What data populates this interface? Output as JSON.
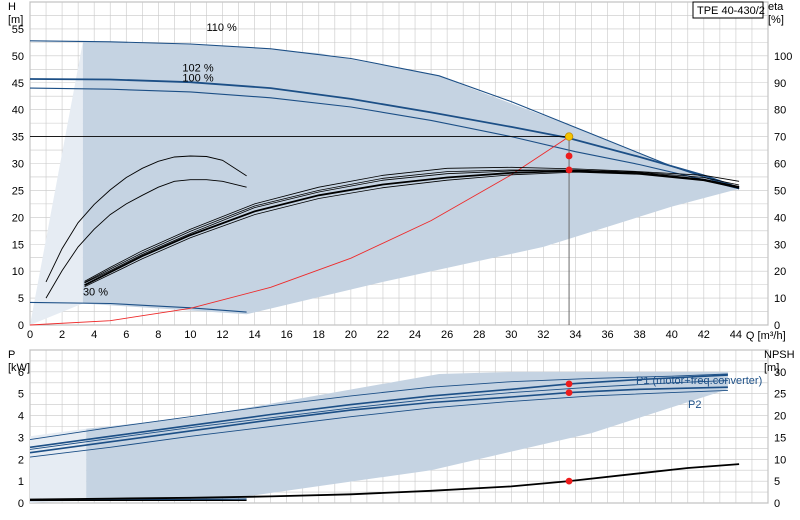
{
  "model": "TPE 40-430/2",
  "colors": {
    "envelope": "#c5d3e2",
    "envelope_light": "#e6ecf3",
    "speed_curve": "#1c4f86",
    "efficiency": "#000000",
    "system_curve": "#ee2a2a",
    "duty_point": "#f5c400",
    "marker": "#ee1c1c",
    "grid": "#c8c8c8"
  },
  "chart_data": [
    {
      "type": "line",
      "id": "qh",
      "xlabel": "Q [m³/h]",
      "ylabel": "H\n[m]",
      "y2label": "eta\n[%]",
      "xlim": [
        0,
        46
      ],
      "ylim": [
        0,
        60
      ],
      "y2lim": [
        0,
        120
      ],
      "xticks": [
        0,
        2,
        4,
        6,
        8,
        10,
        12,
        14,
        16,
        18,
        20,
        22,
        24,
        26,
        28,
        30,
        32,
        34,
        36,
        38,
        40,
        42,
        44
      ],
      "yticks": [
        0,
        5,
        10,
        15,
        20,
        25,
        30,
        35,
        40,
        45,
        50,
        55
      ],
      "y2ticks": [
        0,
        10,
        20,
        30,
        40,
        50,
        60,
        70,
        80,
        90,
        100
      ],
      "grid": true,
      "envelope": {
        "outer": [
          [
            0,
            52.8
          ],
          [
            3.3,
            52.6
          ],
          [
            10,
            52.2
          ],
          [
            18,
            50.5
          ],
          [
            25.5,
            46.2
          ],
          [
            33,
            37.8
          ],
          [
            40,
            29.5
          ],
          [
            44.2,
            25.3
          ]
        ],
        "lower": [
          [
            44.2,
            25.3
          ],
          [
            40,
            22.0
          ],
          [
            32,
            14.5
          ],
          [
            22,
            8.0
          ],
          [
            13.5,
            2.0
          ]
        ],
        "minimum": [
          [
            0,
            4.2
          ],
          [
            5,
            4.0
          ],
          [
            10,
            3.2
          ],
          [
            13.5,
            2.4
          ]
        ]
      },
      "series": [
        {
          "name": "110 %",
          "role": "speed",
          "points": [
            [
              0,
              52.8
            ],
            [
              5,
              52.6
            ],
            [
              10,
              52.2
            ],
            [
              15,
              51.3
            ],
            [
              20,
              49.5
            ],
            [
              25.5,
              46.3
            ],
            [
              30,
              41.5
            ],
            [
              35,
              35.5
            ],
            [
              40,
              29.5
            ],
            [
              44.2,
              25.3
            ]
          ]
        },
        {
          "name": "102 %",
          "role": "speed",
          "points": [
            [
              0,
              45.7
            ],
            [
              5,
              45.6
            ],
            [
              10,
              45.1
            ],
            [
              15,
              44.0
            ],
            [
              20,
              42.0
            ],
            [
              25,
              39.5
            ],
            [
              30,
              36.8
            ],
            [
              33.5,
              34.8
            ],
            [
              38,
              31.2
            ],
            [
              42,
              27.8
            ],
            [
              44.2,
              25.5
            ]
          ]
        },
        {
          "name": "100 %",
          "role": "speed",
          "points": [
            [
              0,
              44.0
            ],
            [
              5,
              43.8
            ],
            [
              10,
              43.3
            ],
            [
              15,
              42.2
            ],
            [
              20,
              40.5
            ],
            [
              25,
              38.0
            ],
            [
              30,
              35.0
            ],
            [
              34,
              32.2
            ],
            [
              38,
              29.8
            ],
            [
              42,
              27.0
            ],
            [
              44.2,
              25.3
            ]
          ]
        },
        {
          "name": "30 %",
          "role": "speed",
          "points": [
            [
              0,
              4.2
            ],
            [
              5,
              4.0
            ],
            [
              10,
              3.2
            ],
            [
              13.5,
              2.4
            ]
          ]
        },
        {
          "name": "",
          "role": "system",
          "points": [
            [
              0,
              0
            ],
            [
              5,
              0.8
            ],
            [
              10,
              3.1
            ],
            [
              15,
              7.0
            ],
            [
              20,
              12.4
            ],
            [
              25,
              19.4
            ],
            [
              30,
              27.9
            ],
            [
              33.6,
              35.0
            ]
          ]
        },
        {
          "name": "",
          "role": "efficiency",
          "points": [
            [
              3.4,
              15.8
            ],
            [
              5,
              20.8
            ],
            [
              7,
              26.8
            ],
            [
              10,
              34.8
            ],
            [
              14,
              44.2
            ],
            [
              18,
              50.0
            ],
            [
              22,
              54.5
            ],
            [
              26,
              57.0
            ],
            [
              30,
              57.6
            ],
            [
              34,
              57.5
            ],
            [
              38,
              56.4
            ],
            [
              42,
              54.1
            ],
            [
              44.2,
              51.5
            ]
          ]
        },
        {
          "name": "",
          "role": "efficiency",
          "points": [
            [
              3.4,
              14.8
            ],
            [
              5,
              19.6
            ],
            [
              7,
              25.6
            ],
            [
              10,
              33.4
            ],
            [
              14,
              42.2
            ],
            [
              18,
              48.2
            ],
            [
              22,
              52.2
            ],
            [
              26,
              54.8
            ],
            [
              30,
              56.5
            ],
            [
              33.6,
              57.2
            ],
            [
              38,
              56.4
            ],
            [
              42,
              54.0
            ],
            [
              44.2,
              51.2
            ]
          ]
        },
        {
          "name": "",
          "role": "efficiency",
          "points": [
            [
              3.4,
              15.6
            ],
            [
              5,
              20.2
            ],
            [
              7,
              26.2
            ],
            [
              10,
              34.0
            ],
            [
              14,
              43.6
            ],
            [
              18,
              49.4
            ],
            [
              22,
              53.8
            ],
            [
              26,
              56.2
            ],
            [
              30,
              57.2
            ],
            [
              34,
              57.6
            ],
            [
              38,
              56.8
            ],
            [
              42,
              54.8
            ],
            [
              44.2,
              52.0
            ]
          ]
        },
        {
          "name": "",
          "role": "efficiency",
          "points": [
            [
              3.4,
              14.2
            ],
            [
              5,
              18.8
            ],
            [
              7,
              24.6
            ],
            [
              10,
              32.4
            ],
            [
              14,
              41.0
            ],
            [
              18,
              47.0
            ],
            [
              22,
              51.0
            ],
            [
              26,
              53.8
            ],
            [
              30,
              55.8
            ],
            [
              34,
              56.8
            ],
            [
              38,
              56.0
            ],
            [
              42,
              53.6
            ],
            [
              44.2,
              50.8
            ]
          ]
        },
        {
          "name": "",
          "role": "efficiency",
          "points": [
            [
              3.4,
              16.2
            ],
            [
              5,
              21.4
            ],
            [
              7,
              27.6
            ],
            [
              10,
              35.6
            ],
            [
              14,
              45.0
            ],
            [
              18,
              51.2
            ],
            [
              22,
              55.6
            ],
            [
              26,
              58.2
            ],
            [
              30,
              58.6
            ],
            [
              34,
              58.0
            ],
            [
              38,
              57.0
            ],
            [
              42,
              55.6
            ],
            [
              44.2,
              53.4
            ]
          ]
        },
        {
          "name": "",
          "role": "efficiency_low",
          "points": [
            [
              1,
              10.0
            ],
            [
              2,
              20.2
            ],
            [
              3,
              29.0
            ],
            [
              4,
              35.6
            ],
            [
              5,
              41.0
            ],
            [
              6,
              45.0
            ],
            [
              7,
              48.2
            ],
            [
              8,
              51.2
            ],
            [
              9,
              53.4
            ],
            [
              10,
              54.0
            ],
            [
              11,
              54.0
            ],
            [
              12,
              53.4
            ],
            [
              13.5,
              51.2
            ]
          ]
        },
        {
          "name": "",
          "role": "efficiency_low",
          "points": [
            [
              1,
              16.0
            ],
            [
              2,
              28.4
            ],
            [
              3,
              38.0
            ],
            [
              4,
              44.8
            ],
            [
              5,
              50.2
            ],
            [
              6,
              54.8
            ],
            [
              7,
              58.2
            ],
            [
              8,
              60.8
            ],
            [
              9,
              62.4
            ],
            [
              10,
              62.8
            ],
            [
              11,
              62.6
            ],
            [
              12,
              61.2
            ],
            [
              13.5,
              55.4
            ]
          ]
        }
      ],
      "duty_point": [
        33.6,
        35.0
      ],
      "markers": [
        [
          33.6,
          31.4
        ],
        [
          33.6,
          28.8
        ]
      ],
      "annotations": [
        {
          "text": "110 %",
          "at": [
            11,
            54.6
          ]
        },
        {
          "text": "102 %",
          "at": [
            9.5,
            47.1
          ]
        },
        {
          "text": "100 %",
          "at": [
            9.5,
            45.2
          ]
        },
        {
          "text": "30 %",
          "at": [
            3.3,
            5.5
          ]
        }
      ]
    },
    {
      "type": "line",
      "id": "power",
      "xlabel": "",
      "ylabel": "P\n[kW]",
      "y2label": "NPSH\n[m]",
      "xlim": [
        0,
        46
      ],
      "ylim": [
        0,
        7
      ],
      "y2lim": [
        0,
        35
      ],
      "yticks": [
        0,
        1,
        2,
        3,
        4,
        5,
        6
      ],
      "y2ticks": [
        0,
        5,
        10,
        15,
        20,
        25,
        30
      ],
      "grid": true,
      "envelope": {
        "outer": [
          [
            0,
            3.05
          ],
          [
            10,
            3.9
          ],
          [
            25.5,
            5.9
          ],
          [
            30,
            6.0
          ],
          [
            40,
            6.0
          ],
          [
            43.5,
            6.0
          ]
        ],
        "lower": [
          [
            43.5,
            5.2
          ],
          [
            35,
            3.2
          ],
          [
            25,
            1.5
          ],
          [
            13.5,
            0.3
          ],
          [
            3.5,
            0.1
          ]
        ]
      },
      "series": [
        {
          "name": "P1 (motor+freq.converter)",
          "role": "p1",
          "points": [
            [
              0,
              2.55
            ],
            [
              5,
              3.05
            ],
            [
              10,
              3.55
            ],
            [
              15,
              4.05
            ],
            [
              20,
              4.5
            ],
            [
              25,
              4.9
            ],
            [
              30,
              5.2
            ],
            [
              33.6,
              5.45
            ],
            [
              38,
              5.65
            ],
            [
              43.5,
              5.85
            ]
          ]
        },
        {
          "name": "P2",
          "role": "p2",
          "points": [
            [
              0,
              2.3
            ],
            [
              5,
              2.8
            ],
            [
              10,
              3.3
            ],
            [
              15,
              3.8
            ],
            [
              20,
              4.25
            ],
            [
              25,
              4.6
            ],
            [
              30,
              4.85
            ],
            [
              33.6,
              5.05
            ],
            [
              38,
              5.2
            ],
            [
              43.5,
              5.3
            ]
          ]
        },
        {
          "name": "",
          "role": "p_thin",
          "points": [
            [
              0,
              2.9
            ],
            [
              5,
              3.45
            ],
            [
              10,
              3.95
            ],
            [
              15,
              4.45
            ],
            [
              20,
              4.9
            ],
            [
              25,
              5.3
            ],
            [
              30,
              5.55
            ],
            [
              35,
              5.7
            ],
            [
              40,
              5.8
            ],
            [
              43.5,
              5.9
            ]
          ]
        },
        {
          "name": "",
          "role": "p_thin",
          "points": [
            [
              0,
              2.1
            ],
            [
              5,
              2.55
            ],
            [
              10,
              3.05
            ],
            [
              15,
              3.5
            ],
            [
              20,
              3.95
            ],
            [
              25,
              4.35
            ],
            [
              30,
              4.65
            ],
            [
              35,
              4.9
            ],
            [
              40,
              5.05
            ],
            [
              43.5,
              5.15
            ]
          ]
        },
        {
          "name": "",
          "role": "p_thin",
          "points": [
            [
              0,
              2.45
            ],
            [
              5,
              2.95
            ],
            [
              10,
              3.45
            ],
            [
              15,
              3.9
            ],
            [
              20,
              4.35
            ],
            [
              25,
              4.75
            ],
            [
              30,
              5.05
            ],
            [
              35,
              5.3
            ],
            [
              40,
              5.5
            ],
            [
              43.5,
              5.6
            ]
          ]
        },
        {
          "name": "",
          "role": "p_low",
          "points": [
            [
              0,
              0.12
            ],
            [
              5,
              0.14
            ],
            [
              10,
              0.16
            ],
            [
              13.5,
              0.18
            ]
          ]
        },
        {
          "name": "",
          "role": "npsh",
          "points": [
            [
              0,
              0.8
            ],
            [
              5,
              1.0
            ],
            [
              10,
              1.2
            ],
            [
              15,
              1.5
            ],
            [
              20,
              2.0
            ],
            [
              25,
              2.8
            ],
            [
              30,
              3.8
            ],
            [
              33.6,
              5.0
            ],
            [
              38,
              6.8
            ],
            [
              41,
              8.0
            ],
            [
              44.2,
              8.9
            ]
          ]
        }
      ],
      "markers": [
        [
          33.6,
          5.45
        ],
        [
          33.6,
          5.05
        ]
      ],
      "npsh_marker": [
        33.6,
        5.0
      ]
    }
  ]
}
